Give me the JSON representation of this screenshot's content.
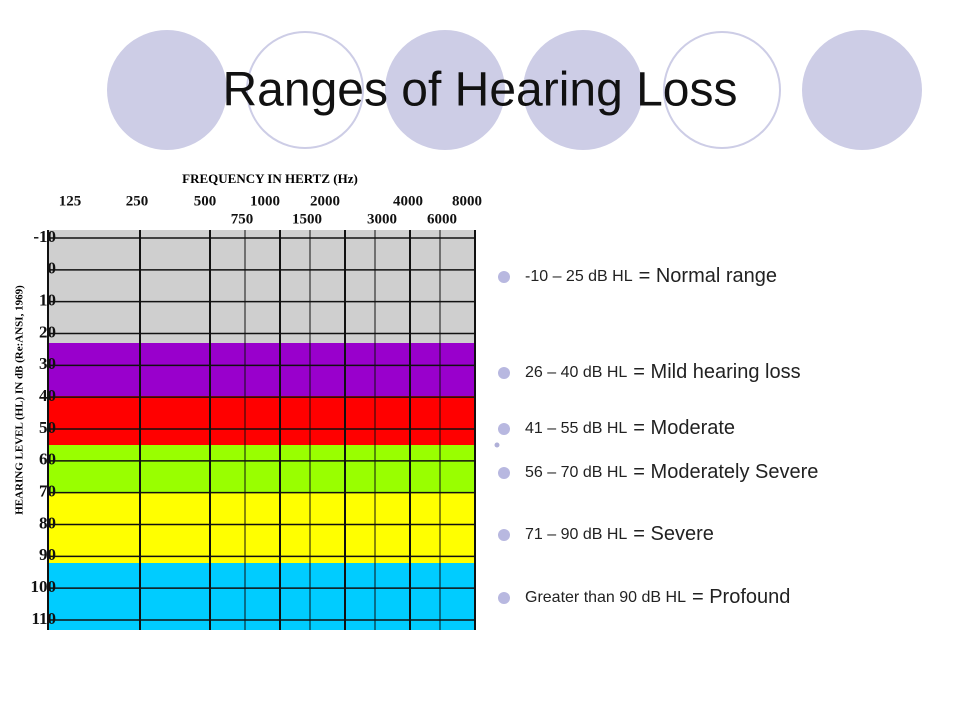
{
  "title": "Ranges of Hearing Loss",
  "audiogram": {
    "x_title": "FREQUENCY IN HERTZ (Hz)",
    "y_title": "HEARING LEVEL (HL) IN dB (Re:ANSI, 1969)",
    "freq_top": [
      "125",
      "250",
      "500",
      "1000",
      "2000",
      "4000",
      "8000"
    ],
    "freq_bottom": [
      "750",
      "1500",
      "3000",
      "6000"
    ],
    "levels": [
      "-10",
      "0",
      "10",
      "20",
      "30",
      "40",
      "50",
      "60",
      "70",
      "80",
      "90",
      "100",
      "110"
    ]
  },
  "bullets": [
    {
      "range": "-10 – 25 dB HL",
      "label": "= Normal range"
    },
    {
      "range": "26 – 40 dB HL",
      "label": "= Mild hearing loss"
    },
    {
      "range": "41 –  55 dB HL",
      "label": "= Moderate"
    },
    {
      "range": "56 – 70 dB HL",
      "label": "= Moderately Severe"
    },
    {
      "range": "71 – 90 dB HL",
      "label": "= Severe"
    },
    {
      "range": "Greater than 90 dB HL",
      "label": "= Profound"
    }
  ]
}
